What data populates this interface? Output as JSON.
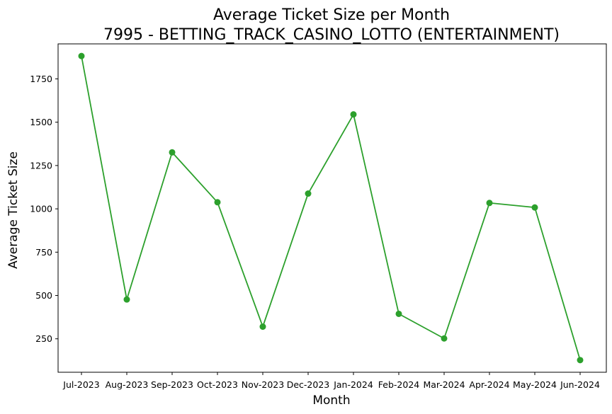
{
  "chart_data": {
    "type": "line",
    "title": "Average Ticket Size per Month",
    "subtitle": "7995 - BETTING_TRACK_CASINO_LOTTO (ENTERTAINMENT)",
    "xlabel": "Month",
    "ylabel": "Average Ticket Size",
    "categories": [
      "Jul-2023",
      "Aug-2023",
      "Sep-2023",
      "Oct-2023",
      "Nov-2023",
      "Dec-2023",
      "Jan-2024",
      "Feb-2024",
      "Mar-2024",
      "Apr-2024",
      "May-2024",
      "Jun-2024"
    ],
    "series": [
      {
        "values": [
          1882,
          477,
          1326,
          1038,
          320,
          1088,
          1545,
          394,
          252,
          1034,
          1008,
          127
        ],
        "color": "#2ca02c",
        "marker": "circle"
      }
    ],
    "yticks": [
      250,
      500,
      750,
      1000,
      1250,
      1500,
      1750
    ],
    "ylim": [
      57,
      1952
    ],
    "grid": false,
    "legend": "none"
  }
}
